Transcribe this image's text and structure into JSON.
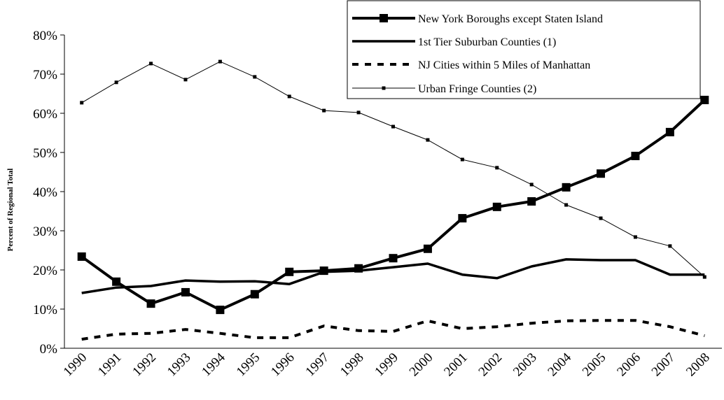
{
  "chart_data": {
    "type": "line",
    "y_label": "Percent of Regional Total",
    "categories": [
      "1990",
      "1991",
      "1992",
      "1993",
      "1994",
      "1995",
      "1996",
      "1997",
      "1998",
      "1999",
      "2000",
      "2001",
      "2002",
      "2003",
      "2004",
      "2005",
      "2006",
      "2007",
      "2008"
    ],
    "series": [
      {
        "name": "New York Boroughs except Staten Island",
        "color": "#000000",
        "marker": "square",
        "dashed": false,
        "values": [
          23.4,
          17.0,
          11.4,
          14.3,
          9.8,
          13.8,
          19.5,
          19.8,
          20.4,
          23.0,
          25.4,
          33.2,
          36.1,
          37.5,
          41.1,
          44.6,
          49.1,
          55.2,
          63.4
        ]
      },
      {
        "name": "1st Tier Suburban Counties (1)",
        "color": "#000000",
        "marker": "none",
        "dashed": false,
        "values": [
          14.1,
          15.5,
          15.9,
          17.3,
          17.0,
          17.1,
          16.4,
          19.5,
          19.8,
          20.7,
          21.6,
          18.8,
          17.9,
          20.9,
          22.7,
          22.5,
          22.5,
          18.8,
          18.8
        ]
      },
      {
        "name": "NJ Cities within 5 Miles of Manhattan",
        "color": "#000000",
        "marker": "none",
        "dashed": true,
        "values": [
          2.3,
          3.6,
          3.8,
          4.8,
          3.8,
          2.7,
          2.7,
          5.7,
          4.5,
          4.3,
          7.0,
          5.0,
          5.5,
          6.4,
          7.0,
          7.1,
          7.1,
          5.5,
          3.2
        ]
      },
      {
        "name": "Urban Fringe Counties (2)",
        "color": "#000000",
        "marker": "square",
        "dashed": false,
        "values": [
          62.7,
          67.9,
          72.7,
          68.6,
          73.2,
          69.3,
          64.3,
          60.7,
          60.2,
          56.6,
          53.2,
          48.2,
          46.1,
          41.8,
          36.6,
          33.2,
          28.4,
          26.1,
          18.2
        ]
      }
    ],
    "ylim": [
      0,
      80
    ],
    "yticks": [
      {
        "value": 0,
        "label": "0%"
      },
      {
        "value": 10,
        "label": "10%"
      },
      {
        "value": 20,
        "label": "20%"
      },
      {
        "value": 30,
        "label": "30%"
      },
      {
        "value": 40,
        "label": "40%"
      },
      {
        "value": 50,
        "label": "50%"
      },
      {
        "value": 60,
        "label": "60%"
      },
      {
        "value": 70,
        "label": "70%"
      },
      {
        "value": 80,
        "label": "80%"
      }
    ],
    "legend": "top-right"
  }
}
